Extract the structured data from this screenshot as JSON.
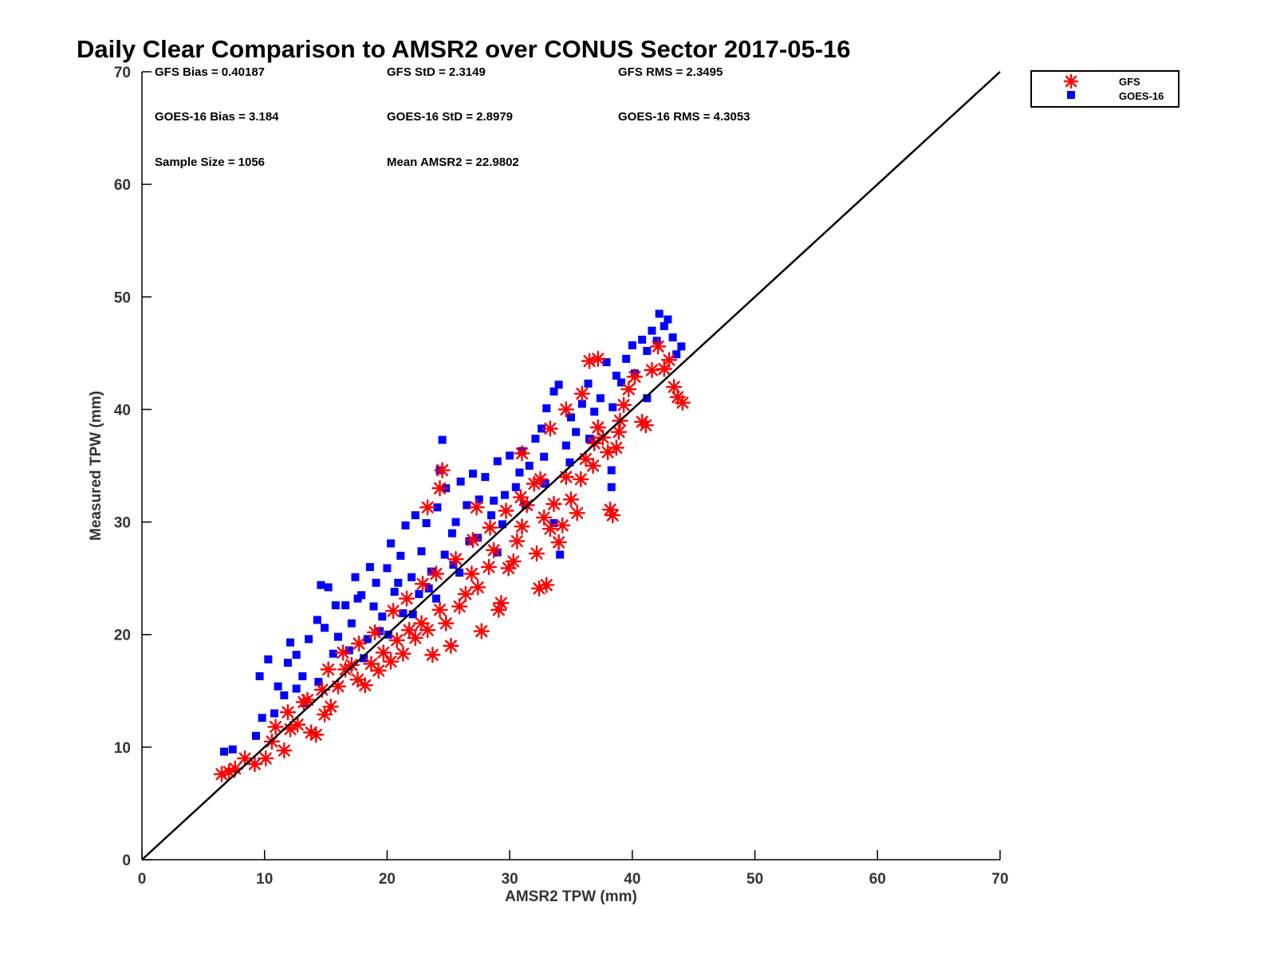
{
  "chart_data": {
    "type": "scatter",
    "title": "Daily Clear Comparison to AMSR2 over CONUS Sector 2017-05-16",
    "xlabel": "AMSR2 TPW (mm)",
    "ylabel": "Measured TPW (mm)",
    "xlim": [
      0,
      70
    ],
    "ylim": [
      0,
      70
    ],
    "xticks": [
      "0",
      "10",
      "20",
      "30",
      "40",
      "50",
      "60",
      "70"
    ],
    "yticks": [
      "0",
      "10",
      "20",
      "30",
      "40",
      "50",
      "60",
      "70"
    ],
    "reference_line": "1:1",
    "grid": false,
    "legend_position": "outside-top-right",
    "stats": {
      "gfs_bias": "GFS Bias = 0.40187",
      "gfs_std": "GFS StD = 2.3149",
      "gfs_rms": "GFS RMS = 2.3495",
      "goes_bias": "GOES-16 Bias = 3.184",
      "goes_std": "GOES-16 StD = 2.8979",
      "goes_rms": "GOES-16 RMS = 4.3053",
      "sample_size": "Sample Size = 1056",
      "mean_amsr2": "Mean AMSR2 = 22.9802"
    },
    "series": [
      {
        "name": "GOES-16",
        "marker": "square",
        "color": "#0000ff",
        "points": [
          [
            6.7,
            9.6
          ],
          [
            7.4,
            9.8
          ],
          [
            9.3,
            11.0
          ],
          [
            9.8,
            12.6
          ],
          [
            9.6,
            16.3
          ],
          [
            10.3,
            17.8
          ],
          [
            11.1,
            15.4
          ],
          [
            11.9,
            17.5
          ],
          [
            12.1,
            19.3
          ],
          [
            12.6,
            18.2
          ],
          [
            13.1,
            16.3
          ],
          [
            13.6,
            19.6
          ],
          [
            14.3,
            21.3
          ],
          [
            14.6,
            24.4
          ],
          [
            15.2,
            24.2
          ],
          [
            15.8,
            22.6
          ],
          [
            16.0,
            19.8
          ],
          [
            16.6,
            22.6
          ],
          [
            17.1,
            21.0
          ],
          [
            17.4,
            25.1
          ],
          [
            17.9,
            23.5
          ],
          [
            18.4,
            19.6
          ],
          [
            18.6,
            26.0
          ],
          [
            19.1,
            24.6
          ],
          [
            19.6,
            21.6
          ],
          [
            20.0,
            25.9
          ],
          [
            20.3,
            28.1
          ],
          [
            20.6,
            23.8
          ],
          [
            21.1,
            27.0
          ],
          [
            21.5,
            29.7
          ],
          [
            22.0,
            25.1
          ],
          [
            22.3,
            30.6
          ],
          [
            22.8,
            27.4
          ],
          [
            23.2,
            29.9
          ],
          [
            23.6,
            25.6
          ],
          [
            24.1,
            31.3
          ],
          [
            24.3,
            34.6
          ],
          [
            24.5,
            37.3
          ],
          [
            24.8,
            33.0
          ],
          [
            25.3,
            29.0
          ],
          [
            25.6,
            30.0
          ],
          [
            26.0,
            33.6
          ],
          [
            26.5,
            31.5
          ],
          [
            27.0,
            34.3
          ],
          [
            27.5,
            32.0
          ],
          [
            28.0,
            34.0
          ],
          [
            28.5,
            30.6
          ],
          [
            29.0,
            35.4
          ],
          [
            29.6,
            32.4
          ],
          [
            30.0,
            35.9
          ],
          [
            30.5,
            33.1
          ],
          [
            31.0,
            36.3
          ],
          [
            31.6,
            35.0
          ],
          [
            32.1,
            37.4
          ],
          [
            32.6,
            38.3
          ],
          [
            33.0,
            40.1
          ],
          [
            33.6,
            41.6
          ],
          [
            34.0,
            42.2
          ],
          [
            34.6,
            36.8
          ],
          [
            35.0,
            39.3
          ],
          [
            35.4,
            38.0
          ],
          [
            35.9,
            40.5
          ],
          [
            36.4,
            42.3
          ],
          [
            36.9,
            39.8
          ],
          [
            37.4,
            41.0
          ],
          [
            37.9,
            44.2
          ],
          [
            38.4,
            40.2
          ],
          [
            38.7,
            43.0
          ],
          [
            39.1,
            42.4
          ],
          [
            39.5,
            44.5
          ],
          [
            40.0,
            45.7
          ],
          [
            40.2,
            43.2
          ],
          [
            40.8,
            46.2
          ],
          [
            41.2,
            45.2
          ],
          [
            41.6,
            47.0
          ],
          [
            42.0,
            46.1
          ],
          [
            42.2,
            48.5
          ],
          [
            42.6,
            47.4
          ],
          [
            42.9,
            48.0
          ],
          [
            43.3,
            46.4
          ],
          [
            43.6,
            44.9
          ],
          [
            44.0,
            45.6
          ],
          [
            41.2,
            41.0
          ],
          [
            38.3,
            34.6
          ],
          [
            38.3,
            33.1
          ],
          [
            34.1,
            27.1
          ],
          [
            33.6,
            29.9
          ],
          [
            29.0,
            27.3
          ],
          [
            12.6,
            15.2
          ],
          [
            14.4,
            15.8
          ],
          [
            10.8,
            13.0
          ],
          [
            11.6,
            14.6
          ],
          [
            13.3,
            13.9
          ],
          [
            16.9,
            18.6
          ],
          [
            19.4,
            20.3
          ],
          [
            21.3,
            21.9
          ],
          [
            23.4,
            24.1
          ],
          [
            25.4,
            26.2
          ],
          [
            27.4,
            28.6
          ],
          [
            29.4,
            29.8
          ],
          [
            31.3,
            31.5
          ],
          [
            32.9,
            33.4
          ],
          [
            34.9,
            35.3
          ],
          [
            36.5,
            37.4
          ],
          [
            14.9,
            20.6
          ],
          [
            15.6,
            18.3
          ],
          [
            17.6,
            23.2
          ],
          [
            18.9,
            22.5
          ],
          [
            20.9,
            24.6
          ],
          [
            22.6,
            23.6
          ],
          [
            24.7,
            27.1
          ],
          [
            26.7,
            28.3
          ],
          [
            28.7,
            31.9
          ],
          [
            30.8,
            34.4
          ],
          [
            32.8,
            35.8
          ],
          [
            18.1,
            17.9
          ],
          [
            20.1,
            20.0
          ],
          [
            22.1,
            21.8
          ],
          [
            24.0,
            23.2
          ],
          [
            25.9,
            25.5
          ]
        ]
      },
      {
        "name": "GFS",
        "marker": "asterisk",
        "color": "#ff0000",
        "points": [
          [
            6.5,
            7.6
          ],
          [
            7.1,
            7.8
          ],
          [
            7.6,
            8.1
          ],
          [
            8.4,
            9.0
          ],
          [
            9.2,
            8.5
          ],
          [
            10.1,
            9.0
          ],
          [
            10.6,
            10.5
          ],
          [
            11.6,
            9.7
          ],
          [
            12.1,
            11.6
          ],
          [
            12.7,
            12.0
          ],
          [
            13.2,
            14.0
          ],
          [
            13.8,
            11.3
          ],
          [
            14.2,
            11.1
          ],
          [
            14.9,
            12.9
          ],
          [
            15.4,
            13.6
          ],
          [
            16.0,
            15.4
          ],
          [
            16.6,
            16.9
          ],
          [
            17.1,
            17.3
          ],
          [
            17.6,
            16.0
          ],
          [
            18.2,
            15.5
          ],
          [
            18.7,
            17.4
          ],
          [
            19.3,
            16.8
          ],
          [
            19.7,
            18.4
          ],
          [
            20.3,
            17.6
          ],
          [
            20.8,
            19.5
          ],
          [
            21.3,
            18.3
          ],
          [
            21.8,
            20.4
          ],
          [
            22.3,
            19.7
          ],
          [
            22.8,
            21.0
          ],
          [
            23.3,
            20.4
          ],
          [
            23.7,
            18.2
          ],
          [
            24.3,
            22.2
          ],
          [
            24.8,
            21.0
          ],
          [
            25.2,
            19.0
          ],
          [
            25.9,
            22.5
          ],
          [
            26.4,
            23.6
          ],
          [
            26.9,
            25.4
          ],
          [
            27.4,
            24.2
          ],
          [
            27.7,
            20.3
          ],
          [
            28.3,
            26.0
          ],
          [
            28.7,
            27.5
          ],
          [
            29.1,
            22.2
          ],
          [
            29.3,
            22.8
          ],
          [
            29.9,
            25.9
          ],
          [
            30.3,
            26.5
          ],
          [
            30.6,
            28.3
          ],
          [
            31.0,
            29.6
          ],
          [
            31.4,
            31.5
          ],
          [
            32.0,
            33.4
          ],
          [
            32.2,
            27.2
          ],
          [
            32.4,
            24.1
          ],
          [
            33.0,
            24.4
          ],
          [
            33.3,
            29.4
          ],
          [
            33.6,
            31.6
          ],
          [
            34.0,
            28.2
          ],
          [
            34.3,
            29.7
          ],
          [
            34.6,
            34.0
          ],
          [
            35.0,
            32.0
          ],
          [
            35.5,
            30.8
          ],
          [
            35.8,
            33.8
          ],
          [
            36.2,
            35.6
          ],
          [
            36.5,
            44.3
          ],
          [
            36.8,
            35.0
          ],
          [
            37.2,
            44.5
          ],
          [
            37.6,
            37.5
          ],
          [
            38.0,
            36.2
          ],
          [
            38.2,
            31.1
          ],
          [
            38.4,
            30.6
          ],
          [
            38.7,
            36.6
          ],
          [
            39.0,
            39.0
          ],
          [
            39.3,
            40.4
          ],
          [
            39.7,
            41.8
          ],
          [
            40.2,
            42.9
          ],
          [
            40.8,
            38.9
          ],
          [
            41.1,
            38.6
          ],
          [
            41.6,
            43.5
          ],
          [
            42.1,
            45.6
          ],
          [
            42.6,
            43.6
          ],
          [
            43.0,
            44.4
          ],
          [
            43.4,
            42.0
          ],
          [
            43.7,
            41.1
          ],
          [
            44.1,
            40.6
          ],
          [
            24.5,
            34.6
          ],
          [
            24.3,
            33.0
          ],
          [
            23.3,
            31.3
          ],
          [
            27.3,
            31.3
          ],
          [
            31.0,
            36.1
          ],
          [
            33.3,
            38.3
          ],
          [
            34.6,
            40.0
          ],
          [
            35.9,
            41.4
          ],
          [
            15.2,
            16.9
          ],
          [
            16.4,
            18.4
          ],
          [
            17.7,
            19.2
          ],
          [
            19.0,
            20.2
          ],
          [
            20.5,
            22.1
          ],
          [
            21.6,
            23.2
          ],
          [
            22.9,
            24.5
          ],
          [
            24.0,
            25.4
          ],
          [
            25.6,
            26.7
          ],
          [
            27.0,
            28.4
          ],
          [
            28.4,
            29.5
          ],
          [
            29.7,
            31.0
          ],
          [
            30.9,
            32.2
          ],
          [
            32.5,
            33.8
          ],
          [
            10.9,
            11.8
          ],
          [
            11.9,
            13.1
          ],
          [
            13.5,
            14.2
          ],
          [
            14.7,
            15.1
          ],
          [
            37.2,
            38.4
          ],
          [
            38.9,
            38.0
          ],
          [
            36.9,
            37.0
          ],
          [
            32.8,
            30.4
          ]
        ]
      }
    ]
  }
}
